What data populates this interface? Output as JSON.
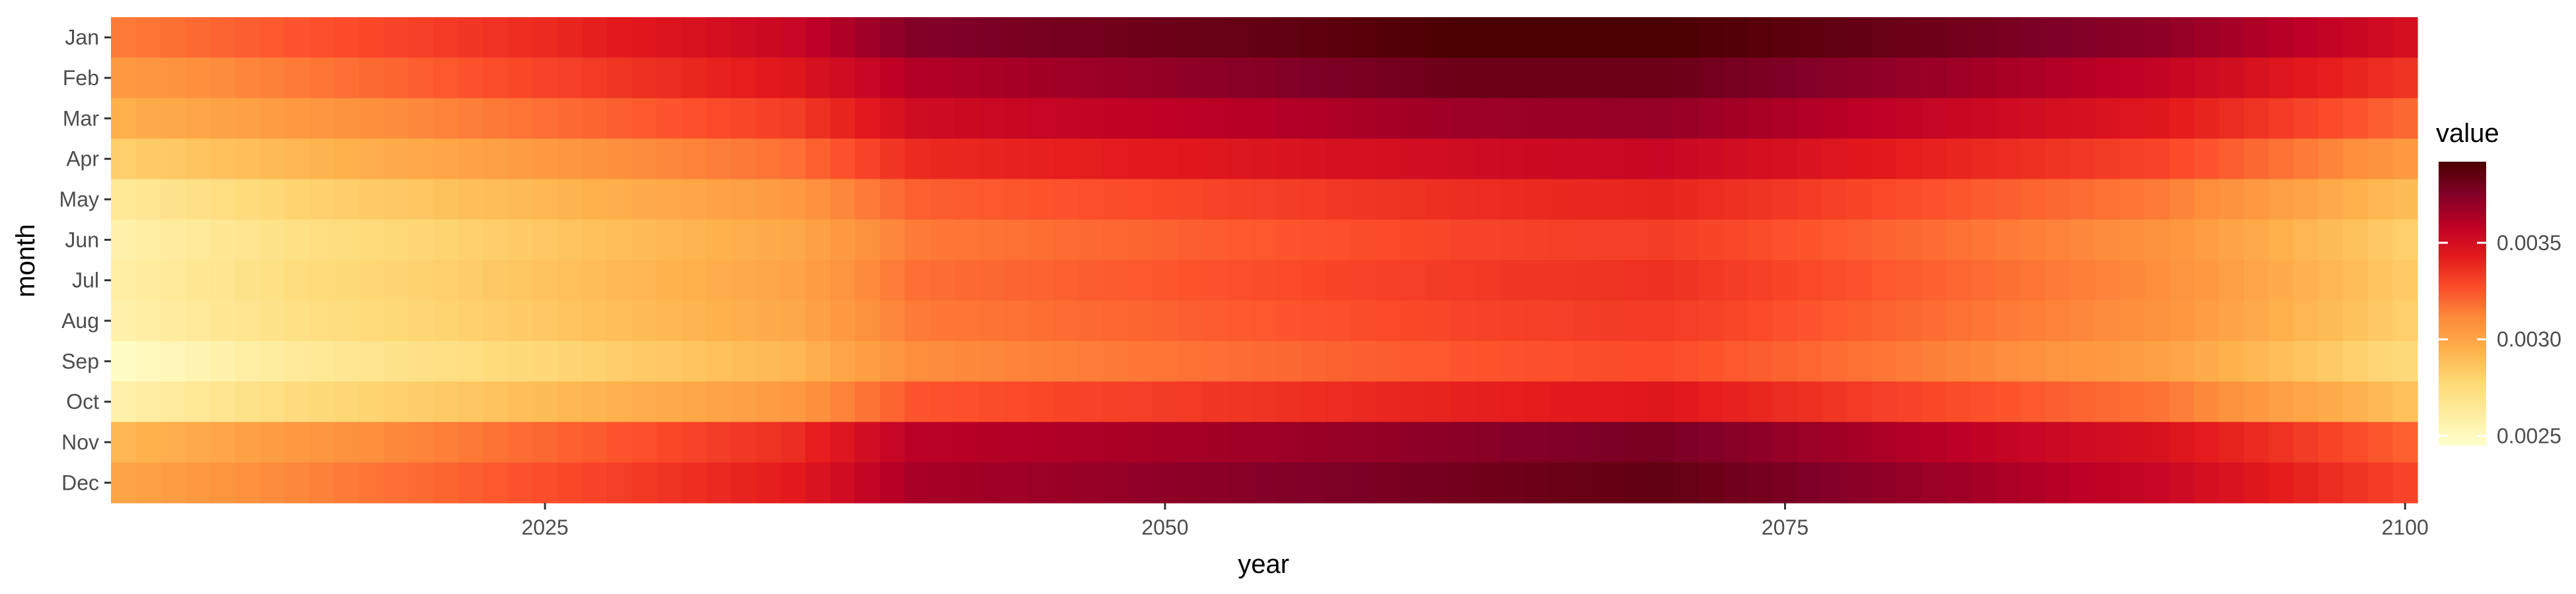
{
  "chart_data": {
    "type": "heatmap",
    "title": "",
    "xlabel": "year",
    "ylabel": "month",
    "x_ticks": [
      2025,
      2050,
      2075,
      2100
    ],
    "xlim": [
      2007.5,
      2100.5
    ],
    "years": {
      "start": 2008,
      "end": 2100
    },
    "months": [
      "Jan",
      "Feb",
      "Mar",
      "Apr",
      "May",
      "Jun",
      "Jul",
      "Aug",
      "Sep",
      "Oct",
      "Nov",
      "Dec"
    ],
    "legend": {
      "title": "value",
      "position": "right",
      "range": [
        0.00245,
        0.00392
      ],
      "ticks": [
        {
          "value": 0.0025,
          "label": "0.0025"
        },
        {
          "value": 0.003,
          "label": "0.0030"
        },
        {
          "value": 0.0035,
          "label": "0.0035"
        }
      ]
    },
    "colors": [
      "#ffffcc",
      "#ffeda0",
      "#fed976",
      "#feb24c",
      "#fd8d3c",
      "#fc4e2a",
      "#e31a1c",
      "#bd0026",
      "#800026",
      "#4a0000"
    ],
    "series": [
      {
        "name": "Jan",
        "values": [
          {
            "year": 2008,
            "value": 0.00315
          },
          {
            "year": 2015,
            "value": 0.00325
          },
          {
            "year": 2025,
            "value": 0.00338
          },
          {
            "year": 2035,
            "value": 0.00355
          },
          {
            "year": 2040,
            "value": 0.00375
          },
          {
            "year": 2055,
            "value": 0.00385
          },
          {
            "year": 2062,
            "value": 0.00392
          },
          {
            "year": 2070,
            "value": 0.00392
          },
          {
            "year": 2080,
            "value": 0.00382
          },
          {
            "year": 2090,
            "value": 0.00372
          },
          {
            "year": 2100,
            "value": 0.0035
          }
        ]
      },
      {
        "name": "Feb",
        "values": [
          {
            "year": 2008,
            "value": 0.00305
          },
          {
            "year": 2015,
            "value": 0.00315
          },
          {
            "year": 2025,
            "value": 0.0033
          },
          {
            "year": 2035,
            "value": 0.00345
          },
          {
            "year": 2040,
            "value": 0.00362
          },
          {
            "year": 2055,
            "value": 0.00375
          },
          {
            "year": 2062,
            "value": 0.00382
          },
          {
            "year": 2070,
            "value": 0.00382
          },
          {
            "year": 2080,
            "value": 0.0037
          },
          {
            "year": 2090,
            "value": 0.00357
          },
          {
            "year": 2100,
            "value": 0.00335
          }
        ]
      },
      {
        "name": "Mar",
        "values": [
          {
            "year": 2008,
            "value": 0.00295
          },
          {
            "year": 2015,
            "value": 0.00305
          },
          {
            "year": 2025,
            "value": 0.00318
          },
          {
            "year": 2035,
            "value": 0.00332
          },
          {
            "year": 2040,
            "value": 0.00352
          },
          {
            "year": 2055,
            "value": 0.00362
          },
          {
            "year": 2062,
            "value": 0.00368
          },
          {
            "year": 2070,
            "value": 0.0037
          },
          {
            "year": 2080,
            "value": 0.00357
          },
          {
            "year": 2090,
            "value": 0.00345
          },
          {
            "year": 2100,
            "value": 0.0032
          }
        ]
      },
      {
        "name": "Apr",
        "values": [
          {
            "year": 2008,
            "value": 0.00282
          },
          {
            "year": 2015,
            "value": 0.00292
          },
          {
            "year": 2025,
            "value": 0.00305
          },
          {
            "year": 2035,
            "value": 0.00318
          },
          {
            "year": 2040,
            "value": 0.00338
          },
          {
            "year": 2055,
            "value": 0.00347
          },
          {
            "year": 2062,
            "value": 0.00352
          },
          {
            "year": 2070,
            "value": 0.00355
          },
          {
            "year": 2080,
            "value": 0.00342
          },
          {
            "year": 2090,
            "value": 0.0033
          },
          {
            "year": 2100,
            "value": 0.00305
          }
        ]
      },
      {
        "name": "May",
        "values": [
          {
            "year": 2008,
            "value": 0.00265
          },
          {
            "year": 2015,
            "value": 0.0028
          },
          {
            "year": 2025,
            "value": 0.00292
          },
          {
            "year": 2035,
            "value": 0.00305
          },
          {
            "year": 2040,
            "value": 0.00322
          },
          {
            "year": 2055,
            "value": 0.00332
          },
          {
            "year": 2062,
            "value": 0.00337
          },
          {
            "year": 2070,
            "value": 0.0034
          },
          {
            "year": 2080,
            "value": 0.00327
          },
          {
            "year": 2090,
            "value": 0.00315
          },
          {
            "year": 2100,
            "value": 0.0029
          }
        ]
      },
      {
        "name": "Jun",
        "values": [
          {
            "year": 2008,
            "value": 0.00258
          },
          {
            "year": 2015,
            "value": 0.00272
          },
          {
            "year": 2025,
            "value": 0.00285
          },
          {
            "year": 2035,
            "value": 0.00298
          },
          {
            "year": 2040,
            "value": 0.00315
          },
          {
            "year": 2055,
            "value": 0.00325
          },
          {
            "year": 2062,
            "value": 0.0033
          },
          {
            "year": 2070,
            "value": 0.00332
          },
          {
            "year": 2080,
            "value": 0.0032
          },
          {
            "year": 2090,
            "value": 0.00308
          },
          {
            "year": 2100,
            "value": 0.00282
          }
        ]
      },
      {
        "name": "Jul",
        "values": [
          {
            "year": 2008,
            "value": 0.0026
          },
          {
            "year": 2015,
            "value": 0.00274
          },
          {
            "year": 2025,
            "value": 0.00287
          },
          {
            "year": 2035,
            "value": 0.003
          },
          {
            "year": 2040,
            "value": 0.00318
          },
          {
            "year": 2055,
            "value": 0.00328
          },
          {
            "year": 2062,
            "value": 0.00333
          },
          {
            "year": 2070,
            "value": 0.00336
          },
          {
            "year": 2080,
            "value": 0.00323
          },
          {
            "year": 2090,
            "value": 0.0031
          },
          {
            "year": 2100,
            "value": 0.00284
          }
        ]
      },
      {
        "name": "Aug",
        "values": [
          {
            "year": 2008,
            "value": 0.00258
          },
          {
            "year": 2015,
            "value": 0.00272
          },
          {
            "year": 2025,
            "value": 0.00285
          },
          {
            "year": 2035,
            "value": 0.00298
          },
          {
            "year": 2040,
            "value": 0.00315
          },
          {
            "year": 2055,
            "value": 0.00325
          },
          {
            "year": 2062,
            "value": 0.0033
          },
          {
            "year": 2070,
            "value": 0.00333
          },
          {
            "year": 2080,
            "value": 0.0032
          },
          {
            "year": 2090,
            "value": 0.00308
          },
          {
            "year": 2100,
            "value": 0.00282
          }
        ]
      },
      {
        "name": "Sep",
        "values": [
          {
            "year": 2008,
            "value": 0.00248
          },
          {
            "year": 2015,
            "value": 0.00264
          },
          {
            "year": 2025,
            "value": 0.00278
          },
          {
            "year": 2035,
            "value": 0.00292
          },
          {
            "year": 2040,
            "value": 0.0031
          },
          {
            "year": 2055,
            "value": 0.0032
          },
          {
            "year": 2062,
            "value": 0.00325
          },
          {
            "year": 2070,
            "value": 0.00328
          },
          {
            "year": 2080,
            "value": 0.00315
          },
          {
            "year": 2090,
            "value": 0.00302
          },
          {
            "year": 2100,
            "value": 0.00276
          }
        ]
      },
      {
        "name": "Oct",
        "values": [
          {
            "year": 2008,
            "value": 0.00258
          },
          {
            "year": 2015,
            "value": 0.00275
          },
          {
            "year": 2025,
            "value": 0.0029
          },
          {
            "year": 2035,
            "value": 0.00305
          },
          {
            "year": 2040,
            "value": 0.00325
          },
          {
            "year": 2055,
            "value": 0.00336
          },
          {
            "year": 2062,
            "value": 0.00341
          },
          {
            "year": 2070,
            "value": 0.00345
          },
          {
            "year": 2080,
            "value": 0.0033
          },
          {
            "year": 2090,
            "value": 0.00317
          },
          {
            "year": 2100,
            "value": 0.00288
          }
        ]
      },
      {
        "name": "Nov",
        "values": [
          {
            "year": 2008,
            "value": 0.00292
          },
          {
            "year": 2015,
            "value": 0.00305
          },
          {
            "year": 2025,
            "value": 0.0032
          },
          {
            "year": 2035,
            "value": 0.00337
          },
          {
            "year": 2040,
            "value": 0.0036
          },
          {
            "year": 2055,
            "value": 0.00368
          },
          {
            "year": 2062,
            "value": 0.00373
          },
          {
            "year": 2070,
            "value": 0.00378
          },
          {
            "year": 2080,
            "value": 0.00362
          },
          {
            "year": 2090,
            "value": 0.00348
          },
          {
            "year": 2100,
            "value": 0.00322
          }
        ]
      },
      {
        "name": "Dec",
        "values": [
          {
            "year": 2008,
            "value": 0.003
          },
          {
            "year": 2015,
            "value": 0.00312
          },
          {
            "year": 2025,
            "value": 0.00327
          },
          {
            "year": 2035,
            "value": 0.00343
          },
          {
            "year": 2040,
            "value": 0.00365
          },
          {
            "year": 2055,
            "value": 0.00375
          },
          {
            "year": 2062,
            "value": 0.0038
          },
          {
            "year": 2070,
            "value": 0.00385
          },
          {
            "year": 2080,
            "value": 0.0037
          },
          {
            "year": 2090,
            "value": 0.00355
          },
          {
            "year": 2100,
            "value": 0.0033
          }
        ]
      }
    ]
  }
}
